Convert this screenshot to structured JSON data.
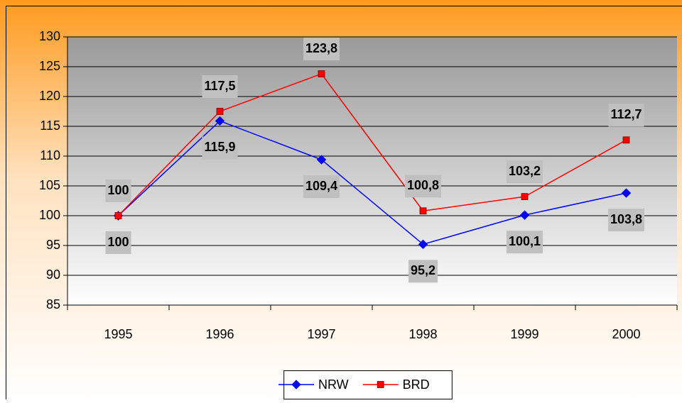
{
  "chart_data": {
    "type": "line",
    "categories": [
      "1995",
      "1996",
      "1997",
      "1998",
      "1999",
      "2000"
    ],
    "series": [
      {
        "name": "NRW",
        "color": "#0000ff",
        "marker": "diamond",
        "values": [
          100,
          115.9,
          109.4,
          95.2,
          100.1,
          103.8
        ],
        "value_labels": [
          "100",
          "115,9",
          "109,4",
          "95,2",
          "100,1",
          "103,8"
        ]
      },
      {
        "name": "BRD",
        "color": "#ff0000",
        "marker": "square",
        "values": [
          100,
          117.5,
          123.8,
          100.8,
          103.2,
          112.7
        ],
        "value_labels": [
          "100",
          "117,5",
          "123,8",
          "100,8",
          "103,2",
          "112,7"
        ]
      }
    ],
    "ylim": [
      85,
      130
    ],
    "yticks": [
      85,
      90,
      95,
      100,
      105,
      110,
      115,
      120,
      125,
      130
    ],
    "grid": true,
    "legend": "bottom"
  }
}
